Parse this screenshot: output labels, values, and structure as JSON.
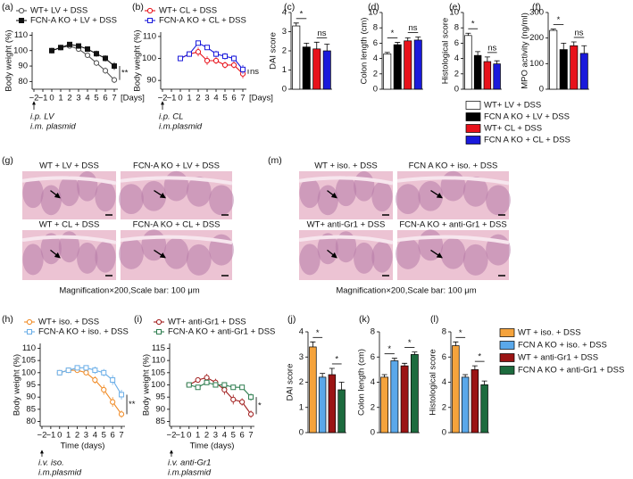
{
  "chart_data": [
    {
      "type": "line",
      "panel": "(a)",
      "y_label": "Body weight (%)",
      "x_label": "[Days]",
      "x": [
        0,
        1,
        2,
        3,
        4,
        5,
        6,
        7
      ],
      "xlim": [
        -2.2,
        7.4
      ],
      "xticks": [
        {
          "value": -2,
          "label": "−2"
        },
        {
          "value": -1,
          "label": "−1"
        },
        0,
        1,
        2,
        3,
        4,
        5,
        6,
        7
      ],
      "ylim": [
        75,
        112
      ],
      "yticks": [
        80,
        90,
        100,
        110
      ],
      "series": [
        {
          "name": "WT+ LV + DSS",
          "color": "#555555",
          "marker": "circle",
          "filled": false,
          "values": [
            100,
            102,
            103,
            101,
            97,
            92,
            87,
            81
          ],
          "errors": [
            0,
            1,
            1,
            1.5,
            1.5,
            2,
            2,
            2
          ]
        },
        {
          "name": "FCN-A KO + LV + DSS",
          "color": "#111111",
          "marker": "square",
          "filled": true,
          "values": [
            100,
            102,
            104,
            103,
            101,
            98,
            95,
            90
          ],
          "errors": [
            0,
            1,
            1,
            1,
            1.5,
            2,
            2,
            2.5
          ]
        }
      ],
      "annotations": [
        "**"
      ],
      "notes": [
        "i.p. LV",
        "i.m. plasmid"
      ]
    },
    {
      "type": "line",
      "panel": "(b)",
      "y_label": "Body weight (%)",
      "x_label": "[Days]",
      "x": [
        0,
        1,
        2,
        3,
        4,
        5,
        6,
        7
      ],
      "xlim": [
        -2.2,
        7.4
      ],
      "xticks": [
        {
          "value": -2,
          "label": "−2"
        },
        {
          "value": -1,
          "label": "−1"
        },
        0,
        1,
        2,
        3,
        4,
        5,
        6,
        7
      ],
      "ylim": [
        86,
        112
      ],
      "yticks": [
        90,
        100,
        110
      ],
      "series": [
        {
          "name": "WT+ CL + DSS",
          "color": "#e8121b",
          "marker": "circle",
          "filled": false,
          "values": [
            100,
            102,
            103,
            99,
            99,
            97,
            97,
            93
          ],
          "errors": [
            0,
            1,
            2,
            2,
            1.5,
            1.5,
            1.5,
            2
          ]
        },
        {
          "name": "FCN-A KO + CL + DSS",
          "color": "#1a1adb",
          "marker": "square",
          "filled": false,
          "values": [
            100,
            102,
            107,
            105,
            102,
            101,
            100,
            95
          ],
          "errors": [
            0,
            1,
            1,
            1,
            1.5,
            1.5,
            1.5,
            2
          ]
        }
      ],
      "annotations": [
        "ns"
      ],
      "notes": [
        "i.p. CL",
        "i.m.plasmid"
      ]
    },
    {
      "type": "bar",
      "panel": "(c)",
      "y_label": "DAI score",
      "values": [
        3.3,
        2.2,
        2.1,
        2.0
      ],
      "errors": [
        0.15,
        0.2,
        0.35,
        0.35
      ],
      "colors": [
        "#ffffff",
        "#000000",
        "#e8121b",
        "#1a1adb"
      ],
      "ylim": [
        0,
        4
      ],
      "yticks": [
        0,
        1,
        2,
        3,
        4
      ],
      "annotations": [
        "*",
        "ns"
      ]
    },
    {
      "type": "bar",
      "panel": "(d)",
      "y_label": "Colon length (cm)",
      "values": [
        4.6,
        5.8,
        6.3,
        6.4
      ],
      "errors": [
        0.2,
        0.3,
        0.4,
        0.4
      ],
      "colors": [
        "#ffffff",
        "#000000",
        "#e8121b",
        "#1a1adb"
      ],
      "ylim": [
        0,
        10
      ],
      "yticks": [
        0,
        2,
        4,
        6,
        8,
        10
      ],
      "annotations": [
        "*",
        "ns"
      ]
    },
    {
      "type": "bar",
      "panel": "(e)",
      "y_label": "Histological score",
      "values": [
        7.0,
        4.4,
        3.6,
        3.3
      ],
      "errors": [
        0.3,
        0.5,
        0.6,
        0.4
      ],
      "colors": [
        "#ffffff",
        "#000000",
        "#e8121b",
        "#1a1adb"
      ],
      "ylim": [
        0,
        10
      ],
      "yticks": [
        0,
        2,
        4,
        6,
        8,
        10
      ],
      "annotations": [
        "*",
        "ns"
      ]
    },
    {
      "type": "bar",
      "panel": "(f)",
      "y_label": "MPO activity (ng/ml)",
      "values": [
        230,
        155,
        170,
        140
      ],
      "errors": [
        5,
        25,
        15,
        30
      ],
      "colors": [
        "#ffffff",
        "#000000",
        "#e8121b",
        "#1a1adb"
      ],
      "ylim": [
        0,
        300
      ],
      "yticks": [
        0,
        100,
        200,
        300
      ],
      "annotations": [
        "*",
        "ns"
      ]
    },
    {
      "type": "line",
      "panel": "(h)",
      "y_label": "Body weight (%)",
      "x_label": "Time (days)",
      "x": [
        0,
        1,
        2,
        3,
        4,
        5,
        6,
        7
      ],
      "xlim": [
        -2.2,
        7.4
      ],
      "xticks": [
        {
          "value": -2,
          "label": "−2"
        },
        {
          "value": -1,
          "label": "−1"
        },
        0,
        1,
        2,
        3,
        4,
        5,
        6,
        7
      ],
      "ylim": [
        78,
        112
      ],
      "yticks": [
        80,
        85,
        90,
        95,
        100,
        105,
        110
      ],
      "series": [
        {
          "name": "WT+ iso. + DSS",
          "color": "#f08a24",
          "marker": "circle",
          "filled": false,
          "values": [
            100,
            101,
            101,
            100,
            97,
            93,
            88,
            83
          ],
          "errors": [
            0,
            1,
            1,
            1,
            1.5,
            2,
            2,
            1.5
          ]
        },
        {
          "name": "FCN-A KO + iso. + DSS",
          "color": "#6aaee8",
          "marker": "square",
          "filled": false,
          "values": [
            100,
            101,
            102,
            102,
            101,
            100,
            97,
            91
          ],
          "errors": [
            0,
            1,
            1,
            1,
            1.5,
            1.5,
            2,
            2
          ]
        }
      ],
      "annotations": [
        "**"
      ],
      "notes": [
        "i.v. iso.",
        "i.m.plasmid"
      ]
    },
    {
      "type": "line",
      "panel": "(i)",
      "y_label": "Body weight (%)",
      "x_label": "Time (days)",
      "x": [
        0,
        1,
        2,
        3,
        4,
        5,
        6,
        7
      ],
      "xlim": [
        -2.2,
        7.4
      ],
      "xticks": [
        {
          "value": -2,
          "label": "−2"
        },
        {
          "value": -1,
          "label": "−1"
        },
        0,
        1,
        2,
        3,
        4,
        5,
        6,
        7
      ],
      "ylim": [
        83,
        117
      ],
      "yticks": [
        85,
        90,
        95,
        100,
        105,
        110,
        115
      ],
      "series": [
        {
          "name": "WT+ anti-Gr1 + DSS",
          "color": "#a01c1c",
          "marker": "circle",
          "filled": false,
          "values": [
            100,
            102,
            103,
            101,
            98,
            94,
            93,
            88
          ],
          "errors": [
            0,
            1,
            1.5,
            1.5,
            2,
            2,
            1.5,
            1.5
          ]
        },
        {
          "name": "FCN-A KO + anti-Gr1 + DSS",
          "color": "#2e7d4f",
          "marker": "square",
          "filled": false,
          "values": [
            100,
            99,
            101,
            100,
            100,
            99,
            99,
            95
          ],
          "errors": [
            0,
            1,
            1,
            1,
            1,
            1,
            1,
            1.5
          ]
        }
      ],
      "annotations": [
        "*"
      ],
      "notes": [
        "i.v. anti-Gr1",
        "i.m.plasmid"
      ]
    },
    {
      "type": "bar",
      "panel": "(j)",
      "y_label": "DAI score",
      "values": [
        3.4,
        2.2,
        2.3,
        1.7
      ],
      "errors": [
        0.2,
        0.15,
        0.25,
        0.3
      ],
      "colors": [
        "#f5a33c",
        "#5aa8ea",
        "#9b1414",
        "#1d6b3e"
      ],
      "ylim": [
        0,
        4
      ],
      "yticks": [
        0,
        1,
        2,
        3,
        4
      ],
      "annotations": [
        "*",
        "*"
      ]
    },
    {
      "type": "bar",
      "panel": "(k)",
      "y_label": "Colon length (cm)",
      "values": [
        4.4,
        5.7,
        5.3,
        6.2
      ],
      "errors": [
        0.2,
        0.2,
        0.2,
        0.2
      ],
      "colors": [
        "#f5a33c",
        "#5aa8ea",
        "#9b1414",
        "#1d6b3e"
      ],
      "ylim": [
        0,
        8
      ],
      "yticks": [
        0,
        2,
        4,
        6,
        8
      ],
      "annotations": [
        "*",
        "*"
      ]
    },
    {
      "type": "bar",
      "panel": "(l)",
      "y_label": "Histological score",
      "values": [
        6.9,
        4.4,
        5.0,
        3.8
      ],
      "errors": [
        0.3,
        0.2,
        0.3,
        0.3
      ],
      "colors": [
        "#f5a33c",
        "#5aa8ea",
        "#9b1414",
        "#1d6b3e"
      ],
      "ylim": [
        0,
        8
      ],
      "yticks": [
        0,
        2,
        4,
        6,
        8
      ],
      "annotations": [
        "*",
        "*"
      ]
    }
  ],
  "legends": [
    {
      "entries": [
        {
          "name": "WT+ LV + DSS",
          "color": "#ffffff"
        },
        {
          "name": "FCN A KO + LV + DSS",
          "color": "#000000"
        },
        {
          "name": "WT+ CL + DSS",
          "color": "#e8121b"
        },
        {
          "name": "FCN A KO + CL + DSS",
          "color": "#1a1adb"
        }
      ]
    },
    {
      "entries": [
        {
          "name": "WT + iso. + DSS",
          "color": "#f5a33c"
        },
        {
          "name": "FCN A KO + iso. + DSS",
          "color": "#5aa8ea"
        },
        {
          "name": "WT + anti-Gr1 + DSS",
          "color": "#9b1414"
        },
        {
          "name": "FCN A KO + anti-Gr1 + DSS",
          "color": "#1d6b3e"
        }
      ]
    }
  ],
  "micrographs": [
    {
      "panel": "(g)",
      "caption": "Magnification×200,Scale bar: 100 μm",
      "tiles": [
        "WT + LV + DSS",
        "FCN-A KO + LV + DSS",
        "WT + CL + DSS",
        "FCN-A KO + CL + DSS"
      ]
    },
    {
      "panel": "(m)",
      "caption": "Magnification×200,Scale bar: 100 μm",
      "tiles": [
        "WT + iso. + DSS",
        "FCN A KO + iso. + DSS",
        "WT+ anti-Gr1 + DSS",
        "FCN-A KO + anti-Gr1 + DSS"
      ]
    }
  ]
}
